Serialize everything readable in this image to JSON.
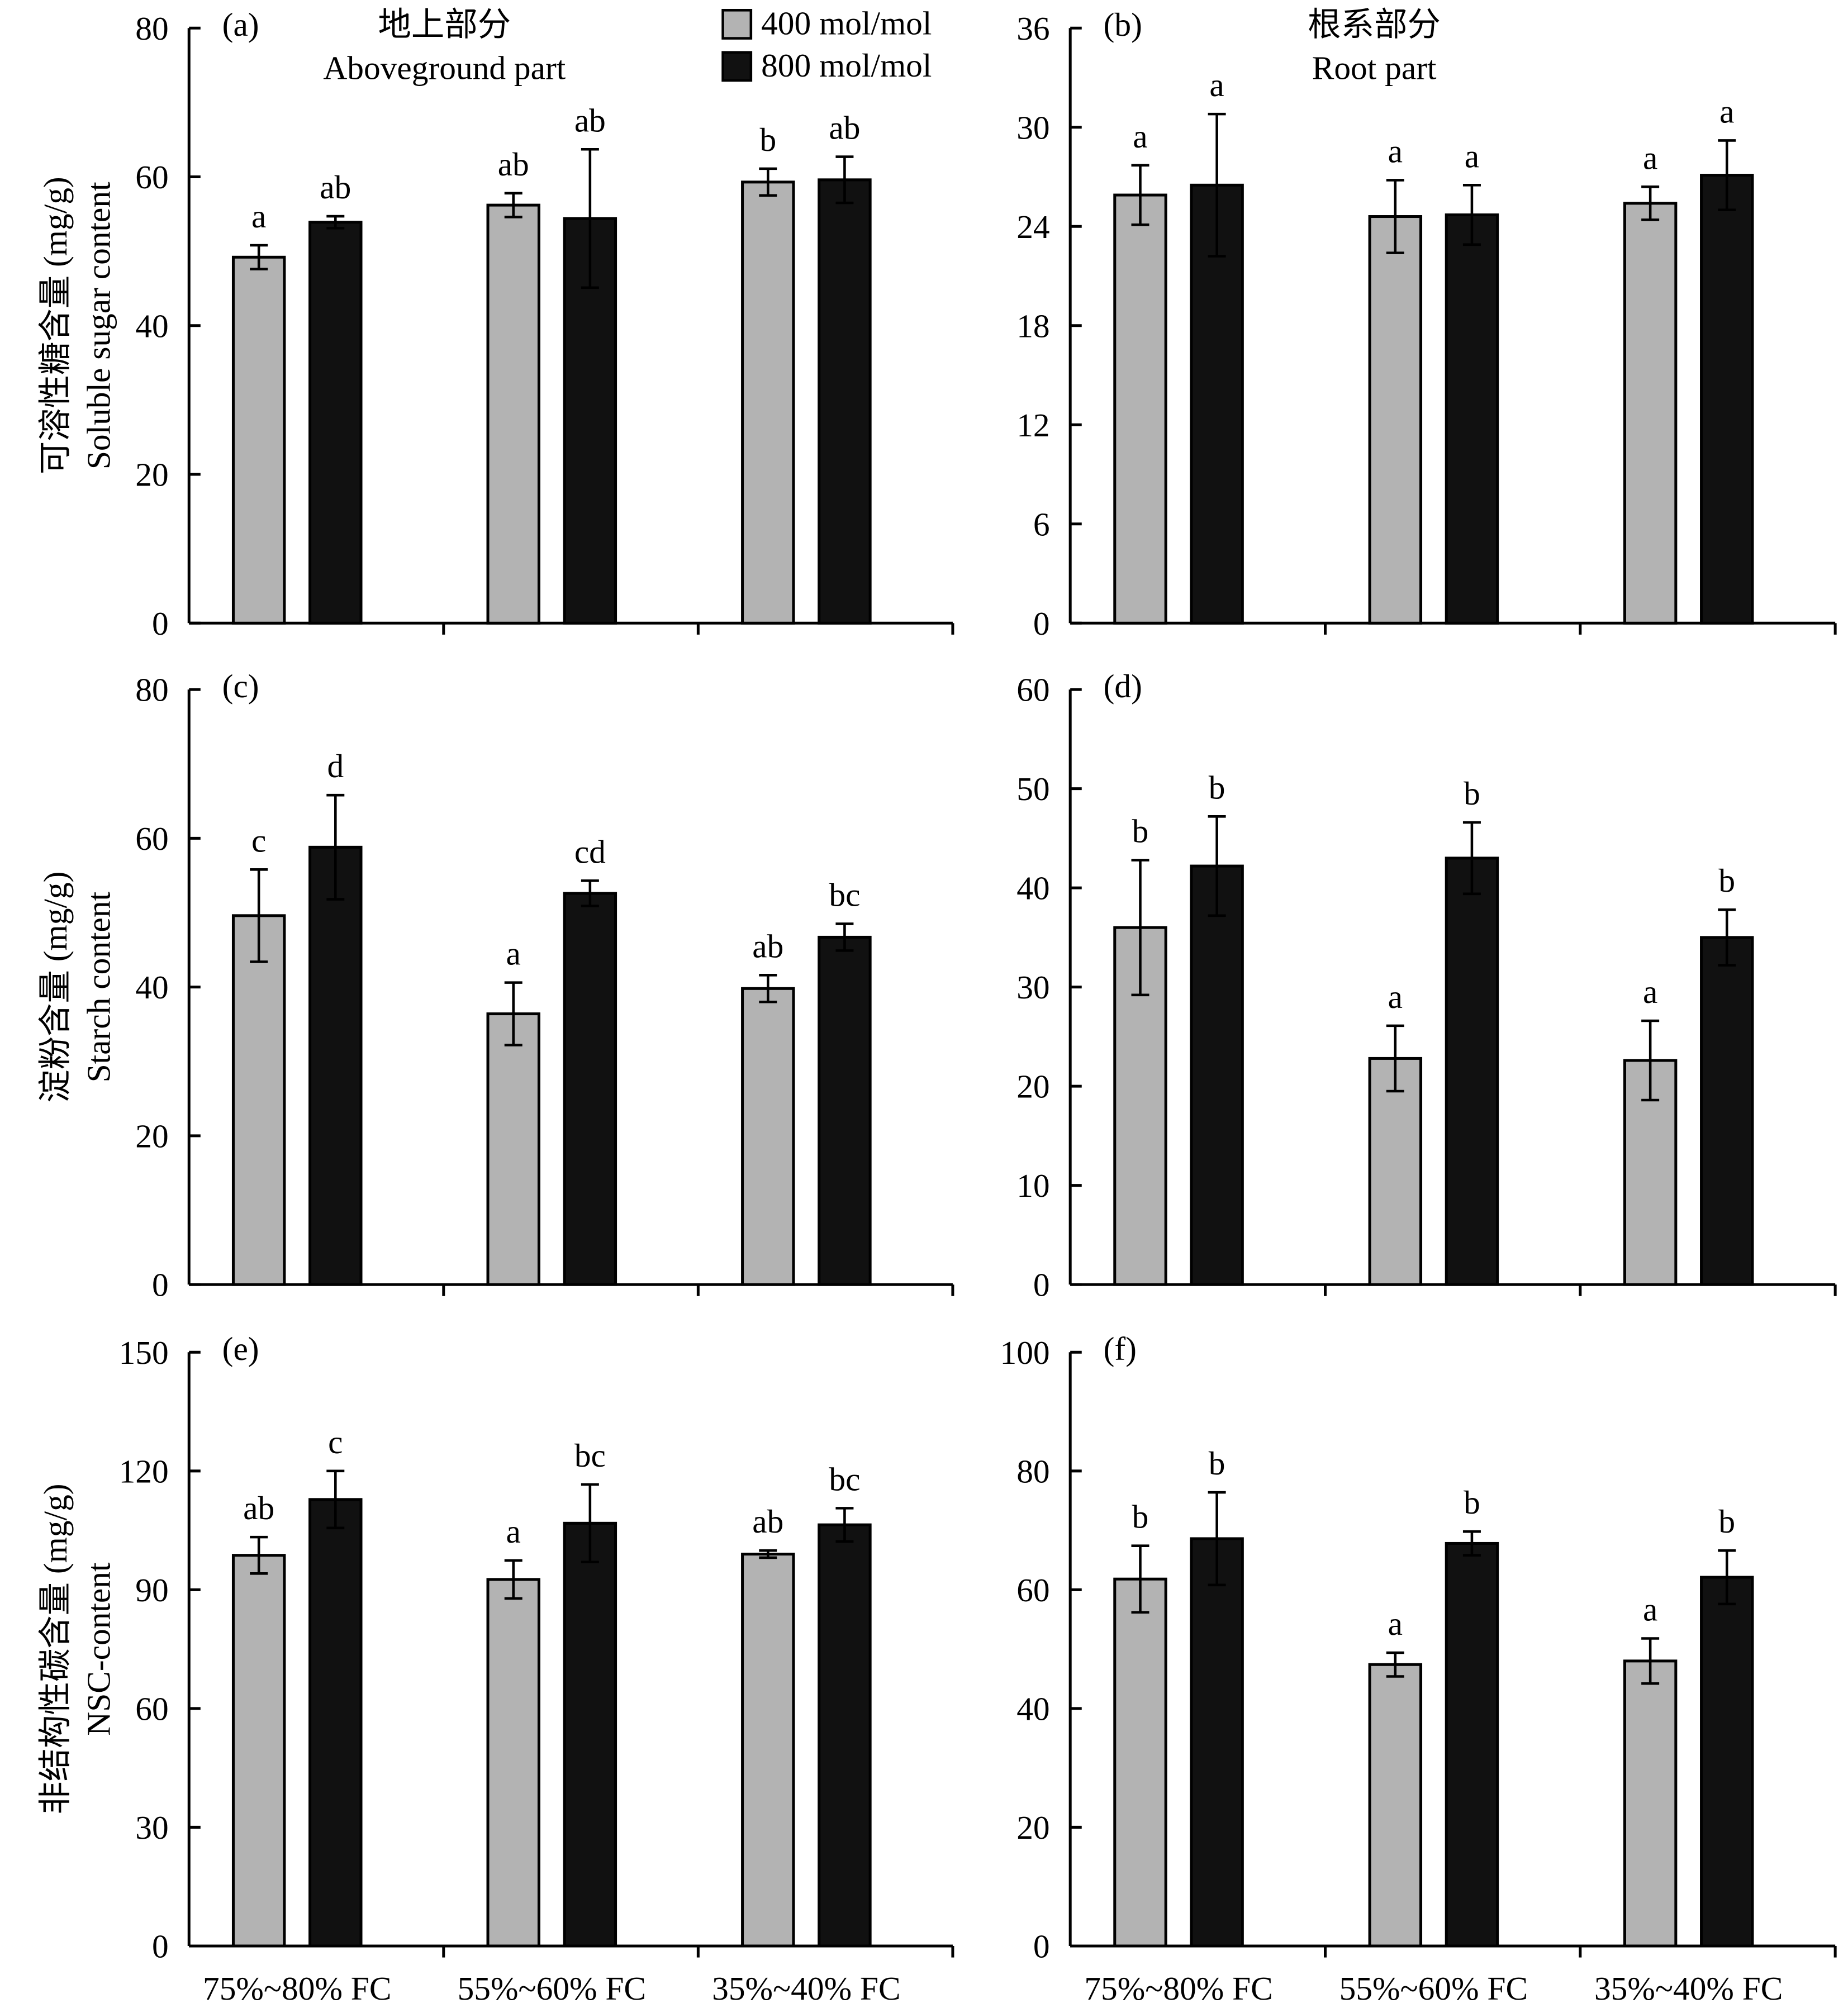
{
  "legend": {
    "items": [
      {
        "label": "400 mol/mol",
        "color": "#b3b3b3"
      },
      {
        "label": "800 mol/mol",
        "color": "#111111"
      }
    ]
  },
  "colors": {
    "low": "#b3b3b3",
    "high": "#111111",
    "axis": "#000000"
  },
  "chart_data": [
    {
      "panel": "(a)",
      "type": "bar",
      "title_cn": "地上部分",
      "title_en": "Aboveground part",
      "ylabel_cn": "可溶性糖含量 (mg/g)",
      "ylabel_en": "Soluble sugar content",
      "categories": [
        "75%~80% FC",
        "55%~60% FC",
        "35%~40% FC"
      ],
      "yticks": [
        0,
        20,
        40,
        60,
        80
      ],
      "ylim": [
        0,
        80
      ],
      "series": [
        {
          "name": "400 mol/mol",
          "values": [
            49.2,
            56.2,
            59.3
          ],
          "errors": [
            1.6,
            1.6,
            1.8
          ],
          "letters": [
            "a",
            "ab",
            "b"
          ]
        },
        {
          "name": "800 mol/mol",
          "values": [
            53.9,
            54.4,
            59.6
          ],
          "errors": [
            0.8,
            9.3,
            3.1
          ],
          "letters": [
            "ab",
            "ab",
            "ab"
          ]
        }
      ]
    },
    {
      "panel": "(b)",
      "type": "bar",
      "title_cn": "根系部分",
      "title_en": "Root part",
      "ylabel_cn": "",
      "ylabel_en": "",
      "categories": [
        "75%~80% FC",
        "55%~60% FC",
        "35%~40% FC"
      ],
      "yticks": [
        0,
        6,
        12,
        18,
        24,
        30,
        36
      ],
      "ylim": [
        0,
        36
      ],
      "series": [
        {
          "name": "400 mol/mol",
          "values": [
            25.9,
            24.6,
            25.4
          ],
          "errors": [
            1.8,
            2.2,
            1.0
          ],
          "letters": [
            "a",
            "a",
            "a"
          ]
        },
        {
          "name": "800 mol/mol",
          "values": [
            26.5,
            24.7,
            27.1
          ],
          "errors": [
            4.3,
            1.8,
            2.1
          ],
          "letters": [
            "a",
            "a",
            "a"
          ]
        }
      ]
    },
    {
      "panel": "(c)",
      "type": "bar",
      "title_cn": "",
      "title_en": "",
      "ylabel_cn": "淀粉含量 (mg/g)",
      "ylabel_en": "Starch content",
      "categories": [
        "75%~80% FC",
        "55%~60% FC",
        "35%~40% FC"
      ],
      "yticks": [
        0,
        20,
        40,
        60,
        80
      ],
      "ylim": [
        0,
        80
      ],
      "series": [
        {
          "name": "400 mol/mol",
          "values": [
            49.6,
            36.4,
            39.8
          ],
          "errors": [
            6.2,
            4.2,
            1.8
          ],
          "letters": [
            "c",
            "a",
            "ab"
          ]
        },
        {
          "name": "800 mol/mol",
          "values": [
            58.8,
            52.6,
            46.7
          ],
          "errors": [
            7.0,
            1.7,
            1.8
          ],
          "letters": [
            "d",
            "cd",
            "bc"
          ]
        }
      ]
    },
    {
      "panel": "(d)",
      "type": "bar",
      "title_cn": "",
      "title_en": "",
      "ylabel_cn": "",
      "ylabel_en": "",
      "categories": [
        "75%~80% FC",
        "55%~60% FC",
        "35%~40% FC"
      ],
      "yticks": [
        0,
        10,
        20,
        30,
        40,
        50,
        60
      ],
      "ylim": [
        0,
        60
      ],
      "series": [
        {
          "name": "400 mol/mol",
          "values": [
            36.0,
            22.8,
            22.6
          ],
          "errors": [
            6.8,
            3.3,
            4.0
          ],
          "letters": [
            "b",
            "a",
            "a"
          ]
        },
        {
          "name": "800 mol/mol",
          "values": [
            42.2,
            43.0,
            35.0
          ],
          "errors": [
            5.0,
            3.6,
            2.8
          ],
          "letters": [
            "b",
            "b",
            "b"
          ]
        }
      ]
    },
    {
      "panel": "(e)",
      "type": "bar",
      "title_cn": "",
      "title_en": "",
      "ylabel_cn": "非结构性碳含量 (mg/g)",
      "ylabel_en": "NSC-content",
      "categories": [
        "75%~80% FC",
        "55%~60% FC",
        "35%~40% FC"
      ],
      "yticks": [
        0,
        30,
        60,
        90,
        120,
        150
      ],
      "ylim": [
        0,
        150
      ],
      "series": [
        {
          "name": "400 mol/mol",
          "values": [
            98.7,
            92.6,
            99.0
          ],
          "errors": [
            4.6,
            4.8,
            0.9
          ],
          "letters": [
            "ab",
            "a",
            "ab"
          ]
        },
        {
          "name": "800 mol/mol",
          "values": [
            112.8,
            106.8,
            106.4
          ],
          "errors": [
            7.2,
            9.8,
            4.2
          ],
          "letters": [
            "c",
            "bc",
            "bc"
          ]
        }
      ]
    },
    {
      "panel": "(f)",
      "type": "bar",
      "title_cn": "",
      "title_en": "",
      "ylabel_cn": "",
      "ylabel_en": "",
      "categories": [
        "75%~80% FC",
        "55%~60% FC",
        "35%~40% FC"
      ],
      "yticks": [
        0,
        20,
        40,
        60,
        80,
        100
      ],
      "ylim": [
        0,
        100
      ],
      "series": [
        {
          "name": "400 mol/mol",
          "values": [
            61.8,
            47.4,
            48.0
          ],
          "errors": [
            5.6,
            2.0,
            3.8
          ],
          "letters": [
            "b",
            "a",
            "a"
          ]
        },
        {
          "name": "800 mol/mol",
          "values": [
            68.6,
            67.8,
            62.1
          ],
          "errors": [
            7.8,
            2.0,
            4.5
          ],
          "letters": [
            "b",
            "b",
            "b"
          ]
        }
      ]
    }
  ]
}
